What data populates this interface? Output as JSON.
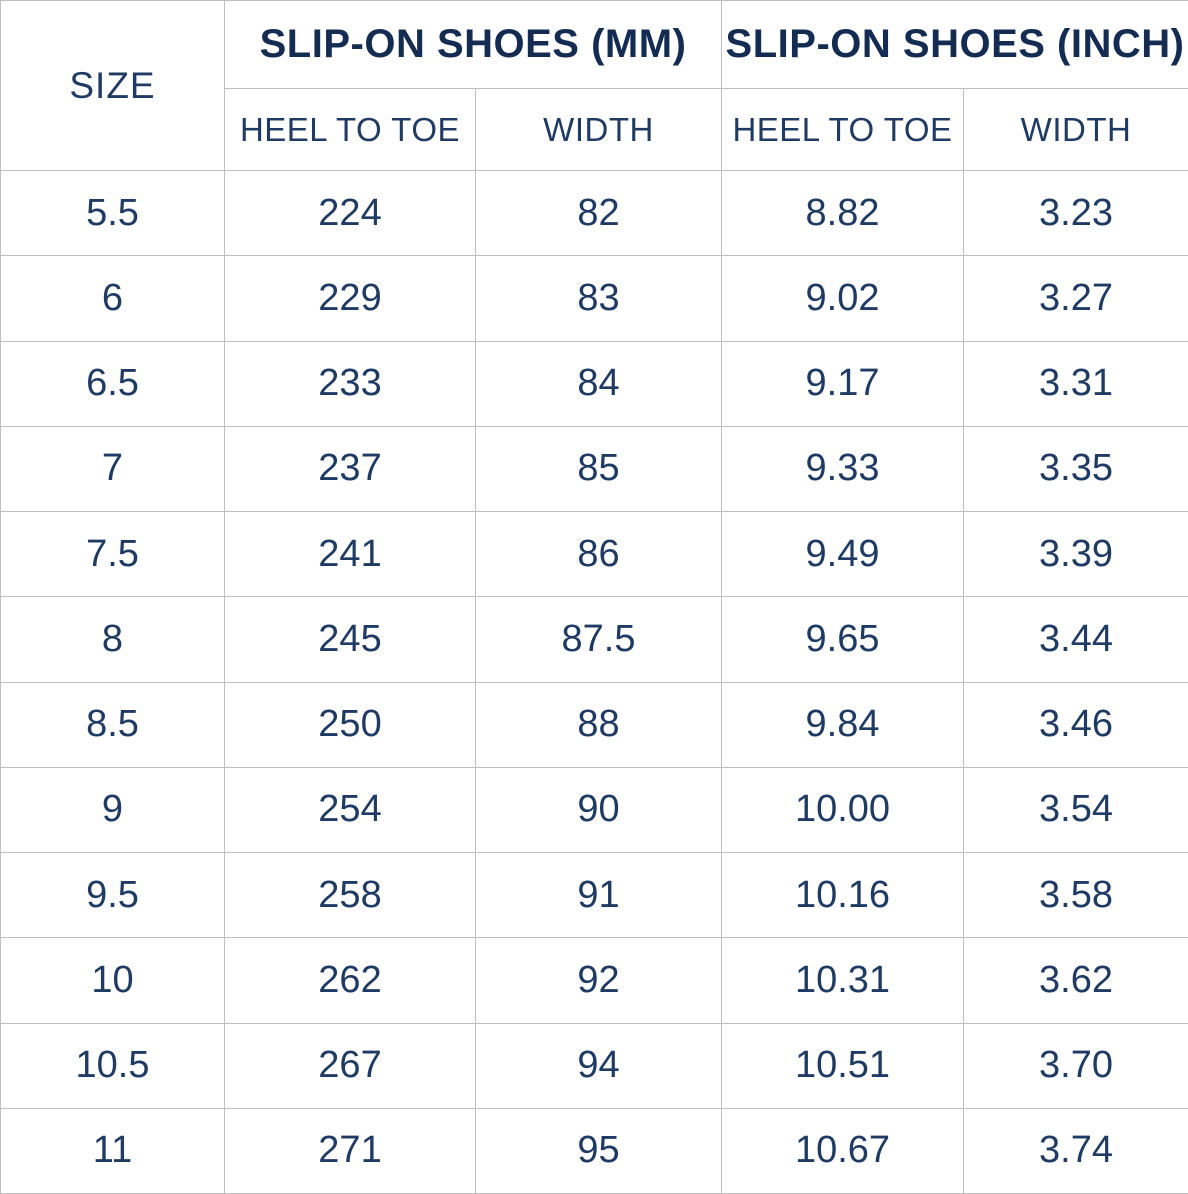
{
  "colors": {
    "background": "#ffffff",
    "border": "#bfbfbf",
    "header_text": "#152c52",
    "body_text": "#1f3b63"
  },
  "chart_data": {
    "type": "table",
    "size_column_header": "SIZE",
    "groups": [
      {
        "label": "SLIP-ON SHOES (MM)",
        "subcolumns": [
          "HEEL TO TOE",
          "WIDTH"
        ]
      },
      {
        "label": "SLIP-ON SHOES (INCH)",
        "subcolumns": [
          "HEEL TO TOE",
          "WIDTH"
        ]
      }
    ],
    "rows": [
      {
        "size": "5.5",
        "values": [
          "224",
          "82",
          "8.82",
          "3.23"
        ]
      },
      {
        "size": "6",
        "values": [
          "229",
          "83",
          "9.02",
          "3.27"
        ]
      },
      {
        "size": "6.5",
        "values": [
          "233",
          "84",
          "9.17",
          "3.31"
        ]
      },
      {
        "size": "7",
        "values": [
          "237",
          "85",
          "9.33",
          "3.35"
        ]
      },
      {
        "size": "7.5",
        "values": [
          "241",
          "86",
          "9.49",
          "3.39"
        ]
      },
      {
        "size": "8",
        "values": [
          "245",
          "87.5",
          "9.65",
          "3.44"
        ]
      },
      {
        "size": "8.5",
        "values": [
          "250",
          "88",
          "9.84",
          "3.46"
        ]
      },
      {
        "size": "9",
        "values": [
          "254",
          "90",
          "10.00",
          "3.54"
        ]
      },
      {
        "size": "9.5",
        "values": [
          "258",
          "91",
          "10.16",
          "3.58"
        ]
      },
      {
        "size": "10",
        "values": [
          "262",
          "92",
          "10.31",
          "3.62"
        ]
      },
      {
        "size": "10.5",
        "values": [
          "267",
          "94",
          "10.51",
          "3.70"
        ]
      },
      {
        "size": "11",
        "values": [
          "271",
          "95",
          "10.67",
          "3.74"
        ]
      }
    ]
  }
}
